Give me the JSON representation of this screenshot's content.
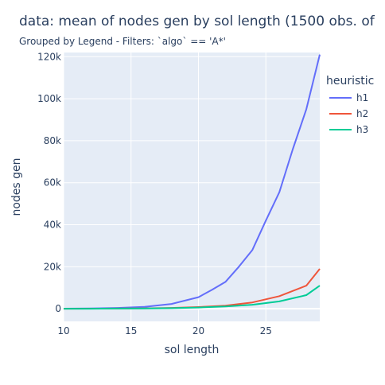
{
  "chart_data": {
    "type": "line",
    "title": "data: mean of nodes gen  by sol length (1500 obs. of",
    "subtitle": "Grouped by Legend - Filters: `algo` == 'A*'",
    "xlabel": "sol length",
    "ylabel": "nodes gen",
    "xlim": [
      10,
      29
    ],
    "ylim": [
      -6000,
      122000
    ],
    "x_ticks": [
      10,
      15,
      20,
      25
    ],
    "x_tick_labels": [
      "10",
      "15",
      "20",
      "25"
    ],
    "y_ticks": [
      0,
      20000,
      40000,
      60000,
      80000,
      100000,
      120000
    ],
    "y_tick_labels": [
      "0",
      "20k",
      "40k",
      "60k",
      "80k",
      "100k",
      "120k"
    ],
    "grid": true,
    "background": "#e5ecf6",
    "legend": {
      "title": "heuristic",
      "placement": "right"
    },
    "series": [
      {
        "name": "h1",
        "color": "#636efa",
        "x": [
          10,
          12,
          14,
          16,
          18,
          20,
          21,
          22,
          23,
          24,
          25,
          26,
          27,
          28,
          29
        ],
        "y": [
          50,
          150,
          400,
          900,
          2300,
          5500,
          9000,
          12800,
          20000,
          28000,
          42000,
          55500,
          76000,
          95000,
          121000
        ]
      },
      {
        "name": "h2",
        "color": "#ef553b",
        "x": [
          10,
          12,
          14,
          16,
          18,
          20,
          22,
          24,
          26,
          28,
          29
        ],
        "y": [
          30,
          60,
          100,
          200,
          400,
          800,
          1500,
          3000,
          6000,
          11000,
          19000
        ]
      },
      {
        "name": "h3",
        "color": "#00cc96",
        "x": [
          10,
          12,
          14,
          16,
          18,
          20,
          22,
          24,
          26,
          28,
          29
        ],
        "y": [
          20,
          40,
          80,
          150,
          300,
          600,
          1100,
          1900,
          3500,
          6500,
          11000
        ]
      }
    ]
  }
}
